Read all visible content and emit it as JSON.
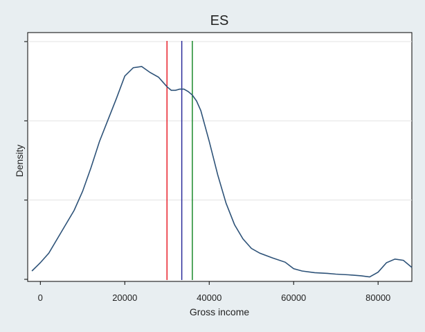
{
  "chart_data": {
    "type": "line",
    "title": "ES",
    "xlabel": "Gross income",
    "ylabel": "Density",
    "xlim": [
      -3000,
      88000
    ],
    "ylim": [
      0,
      1
    ],
    "x_ticks": [
      0,
      20000,
      40000,
      60000,
      80000
    ],
    "x_tick_labels": [
      "0",
      "20000",
      "40000",
      "60000",
      "80000"
    ],
    "y_ticks": [
      0,
      0.3333,
      0.6667,
      1.0
    ],
    "grid": true,
    "legend": "none",
    "series": [
      {
        "color": "#2d5278",
        "x": [
          -2000,
          0,
          2000,
          5000,
          8000,
          10000,
          12000,
          14000,
          16000,
          18000,
          20000,
          22000,
          24000,
          26000,
          28000,
          29000,
          30000,
          31000,
          32000,
          33000,
          34000,
          35000,
          36000,
          37000,
          38000,
          40000,
          42000,
          44000,
          46000,
          48000,
          50000,
          52000,
          55000,
          58000,
          60000,
          62000,
          65000,
          68000,
          70000,
          73000,
          76000,
          78000,
          80000,
          82000,
          84000,
          86000,
          88000
        ],
        "y": [
          0.035,
          0.07,
          0.11,
          0.2,
          0.29,
          0.37,
          0.47,
          0.58,
          0.67,
          0.76,
          0.855,
          0.89,
          0.895,
          0.87,
          0.85,
          0.83,
          0.81,
          0.795,
          0.795,
          0.8,
          0.8,
          0.79,
          0.775,
          0.75,
          0.71,
          0.58,
          0.44,
          0.32,
          0.23,
          0.17,
          0.13,
          0.11,
          0.09,
          0.072,
          0.045,
          0.035,
          0.028,
          0.025,
          0.022,
          0.019,
          0.015,
          0.01,
          0.03,
          0.07,
          0.085,
          0.08,
          0.05
        ]
      }
    ],
    "vertical_lines": [
      {
        "x": 30000,
        "color": "#e8202a"
      },
      {
        "x": 33500,
        "color": "#2a2a9a"
      },
      {
        "x": 36000,
        "color": "#1a8a2a"
      }
    ]
  }
}
